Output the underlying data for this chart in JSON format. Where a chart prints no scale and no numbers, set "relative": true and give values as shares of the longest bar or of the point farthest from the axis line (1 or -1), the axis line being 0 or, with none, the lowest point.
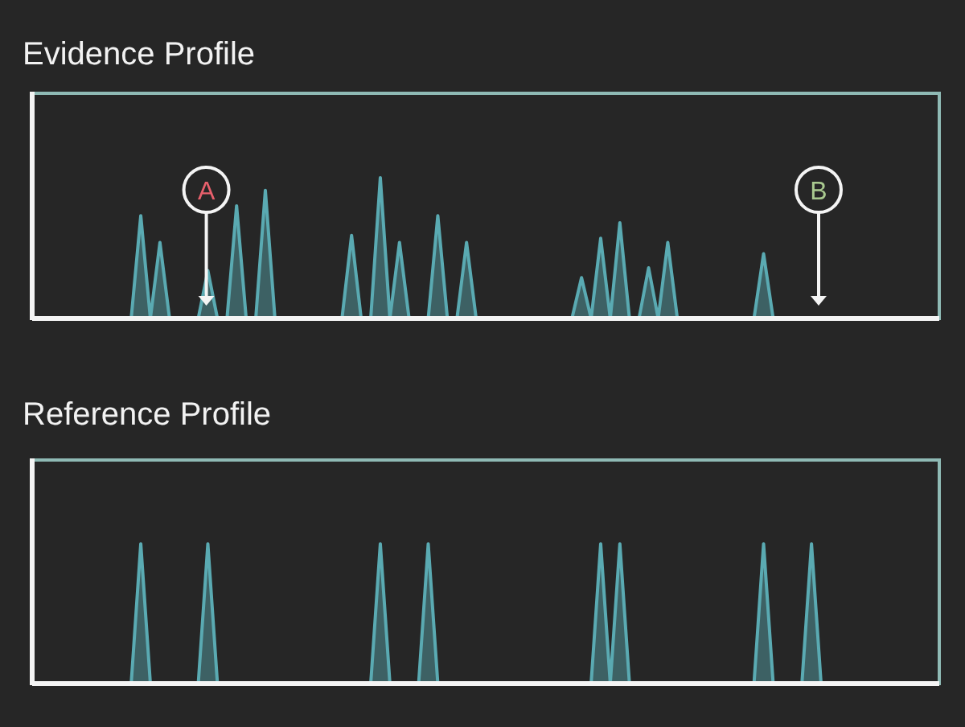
{
  "chart_data": [
    {
      "type": "area",
      "title": "Evidence Profile",
      "relative": true,
      "categories": [
        null,
        null,
        null,
        null,
        null,
        null,
        null,
        null,
        null,
        null,
        null,
        null,
        null,
        null,
        null,
        null,
        null,
        null,
        null,
        null,
        null,
        null,
        null,
        null,
        null,
        null,
        null,
        null,
        null,
        null,
        null,
        null,
        null,
        null,
        null,
        null,
        null,
        null,
        null,
        null,
        null,
        null,
        null,
        null,
        null,
        null,
        null,
        null,
        null,
        null,
        null,
        null,
        null,
        null,
        null,
        null,
        null,
        null,
        null,
        null,
        null,
        null,
        null,
        null,
        null,
        null,
        null,
        null,
        null,
        null,
        null,
        null,
        null,
        null,
        null,
        null,
        null,
        null,
        null,
        null,
        null,
        null,
        null,
        null,
        null,
        null,
        null,
        null,
        null,
        null,
        null,
        null,
        null,
        null,
        null
      ],
      "series": [
        {
          "color": "#5aaab2",
          "values": [
            0,
            0,
            0,
            0,
            0,
            0,
            0,
            0,
            0,
            0,
            0,
            0.73,
            0,
            0.54,
            0,
            0,
            0,
            0,
            0.34,
            0,
            0,
            0.8,
            0,
            0,
            0.91,
            0,
            0,
            0,
            0,
            0,
            0,
            0,
            0,
            0.59,
            0,
            0,
            1,
            0,
            0.54,
            0,
            0,
            0,
            0.73,
            0,
            0,
            0.54,
            0,
            0,
            0,
            0,
            0,
            0,
            0,
            0,
            0,
            0,
            0,
            0.29,
            0,
            0.57,
            0,
            0.68,
            0,
            0,
            0.36,
            0,
            0.54,
            0,
            0,
            0,
            0,
            0,
            0,
            0,
            0,
            0,
            0.46,
            0,
            0,
            0,
            0,
            0,
            0,
            0,
            0,
            0,
            0,
            0,
            0,
            0,
            0,
            0,
            0,
            0,
            0
          ]
        }
      ],
      "annotations": [
        "A",
        "B"
      ]
    },
    {
      "type": "area",
      "title": "Reference Profile",
      "relative": true,
      "categories": [
        null,
        null,
        null,
        null,
        null,
        null,
        null,
        null,
        null,
        null,
        null,
        null,
        null,
        null,
        null,
        null,
        null,
        null,
        null,
        null,
        null,
        null,
        null,
        null,
        null,
        null,
        null,
        null,
        null,
        null,
        null,
        null,
        null,
        null,
        null,
        null,
        null,
        null,
        null,
        null,
        null,
        null,
        null,
        null,
        null,
        null,
        null,
        null,
        null,
        null,
        null,
        null,
        null,
        null,
        null,
        null,
        null,
        null,
        null,
        null,
        null,
        null,
        null,
        null,
        null,
        null,
        null,
        null,
        null,
        null,
        null,
        null,
        null,
        null,
        null,
        null,
        null,
        null,
        null,
        null,
        null,
        null,
        null,
        null,
        null,
        null,
        null,
        null,
        null,
        null,
        null,
        null,
        null,
        null,
        null
      ],
      "series": [
        {
          "color": "#5aaab2",
          "values": [
            0,
            0,
            0,
            0,
            0,
            0,
            0,
            0,
            0,
            0,
            0,
            1,
            0,
            0,
            0,
            0,
            0,
            0,
            1,
            0,
            0,
            0,
            0,
            0,
            0,
            0,
            0,
            0,
            0,
            0,
            0,
            0,
            0,
            0,
            0,
            0,
            1,
            0,
            0,
            0,
            0,
            1,
            0,
            0,
            0,
            0,
            0,
            0,
            0,
            0,
            0,
            0,
            0,
            0,
            0,
            0,
            0,
            0,
            0,
            1,
            0,
            1,
            0,
            0,
            0,
            0,
            0,
            0,
            0,
            0,
            0,
            0,
            0,
            0,
            0,
            0,
            1,
            0,
            0,
            0,
            0,
            1,
            0,
            0,
            0,
            0,
            0,
            0,
            0,
            0,
            0,
            0,
            0,
            0,
            0
          ]
        }
      ]
    }
  ]
}
